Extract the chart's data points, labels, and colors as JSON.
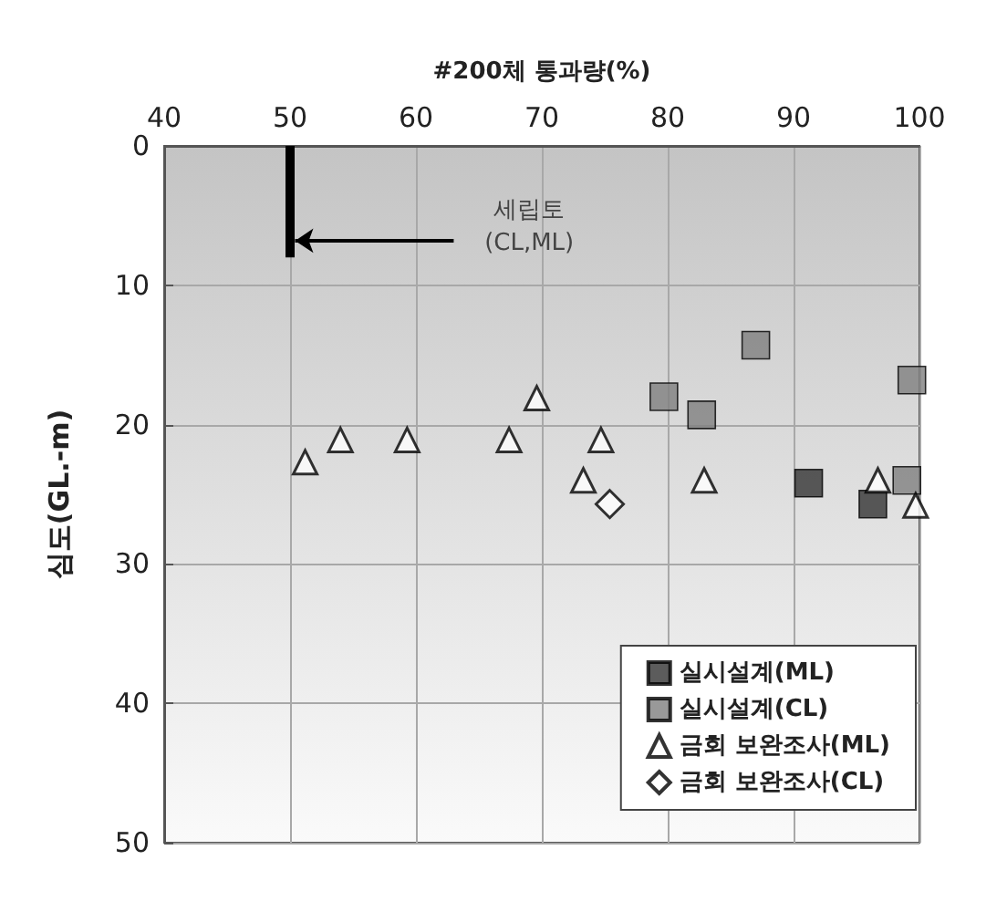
{
  "chart_data": {
    "type": "scatter",
    "xlabel": "#200체 통과량(%)",
    "ylabel": "심도(GL.-m)",
    "xlim": [
      40,
      100
    ],
    "xticks": [
      40,
      50,
      60,
      70,
      80,
      90,
      100
    ],
    "ylim": [
      50,
      0
    ],
    "yticks": [
      0,
      10,
      20,
      30,
      40,
      50
    ],
    "grid": true,
    "legend": "bottom right",
    "series": [
      {
        "name": "실시설계(ML)",
        "color": "#333333",
        "marker": "square",
        "x": [
          91.2,
          96.3
        ],
        "values": [
          24.2,
          25.7
        ]
      },
      {
        "name": "실시설계(CL)",
        "color": "#808080",
        "marker": "square",
        "x": [
          79.7,
          82.7,
          87.0,
          99.4,
          99.0
        ],
        "values": [
          18.0,
          19.3,
          14.3,
          16.8,
          24.0
        ]
      },
      {
        "name": "금회 보완조사(ML)",
        "color": "#ffffff",
        "marker": "triangle",
        "x": [
          51.2,
          54.0,
          59.3,
          67.4,
          69.6,
          74.7,
          73.3,
          82.9,
          96.7,
          99.7
        ],
        "values": [
          22.7,
          21.1,
          21.1,
          21.1,
          18.1,
          21.1,
          24.0,
          24.0,
          24.0,
          25.8
        ]
      },
      {
        "name": "금회 보완조사(CL)",
        "color": "#ffffff",
        "marker": "diamond",
        "x": [
          75.4
        ],
        "values": [
          25.7
        ]
      },
      {
        "type": "line",
        "color": "#000000",
        "x": [
          50,
          50
        ],
        "values": [
          0,
          8
        ]
      }
    ],
    "annotations": [
      {
        "text": "세립토\n(CL,ML)",
        "x": 50,
        "y": 6.8
      }
    ]
  }
}
